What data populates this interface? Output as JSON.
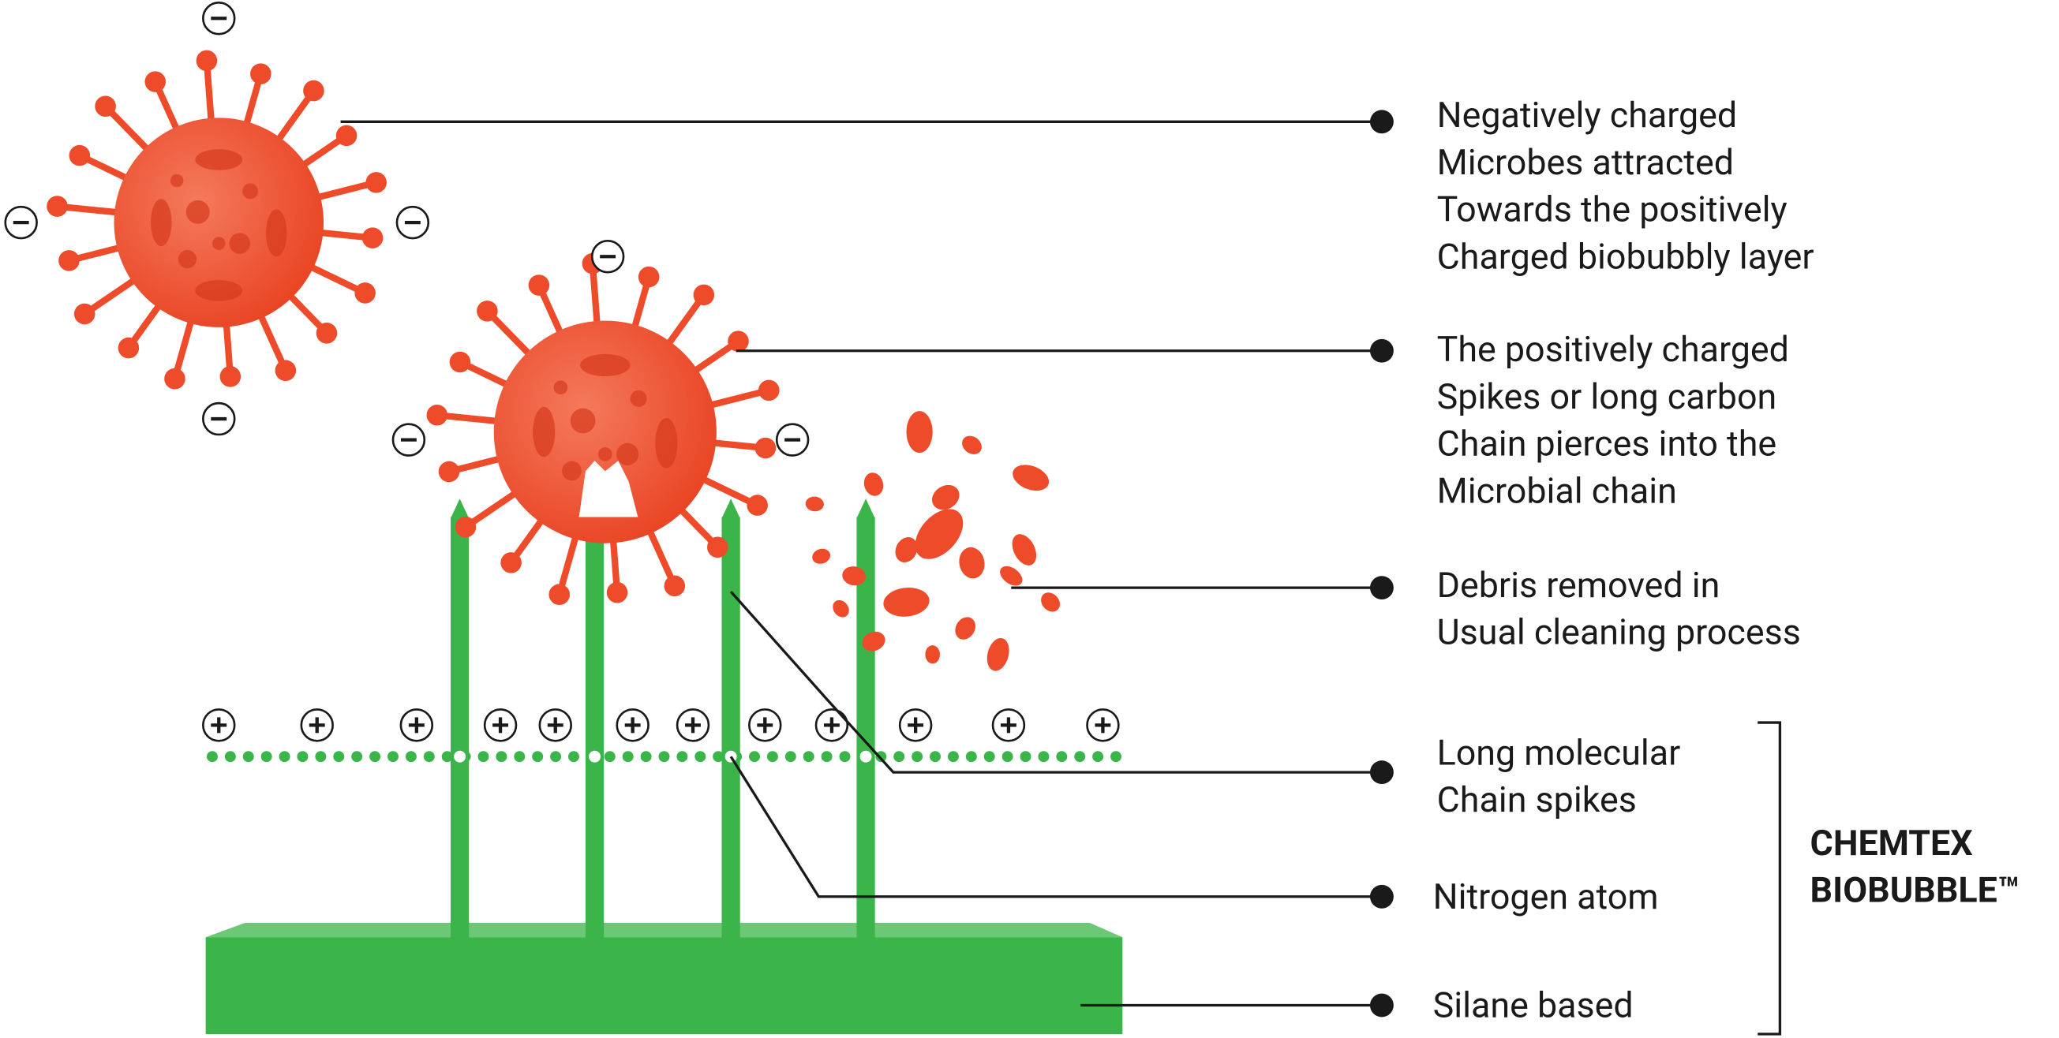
{
  "labels": [
    {
      "lines": [
        "Negatively charged",
        "Microbes attracted",
        "Towards the positively",
        "Charged biobubbly layer"
      ]
    },
    {
      "lines": [
        "The positively charged",
        "Spikes or long carbon",
        "Chain pierces into the",
        "Microbial chain"
      ]
    },
    {
      "lines": [
        "Debris removed in",
        "Usual cleaning process"
      ]
    },
    {
      "lines": [
        "Long molecular",
        "Chain spikes"
      ]
    },
    {
      "lines": [
        "Nitrogen atom"
      ]
    },
    {
      "lines": [
        "Silane based"
      ]
    }
  ],
  "brand": {
    "lines": [
      "CHEMTEX",
      "BIOBUBBLE™"
    ]
  }
}
